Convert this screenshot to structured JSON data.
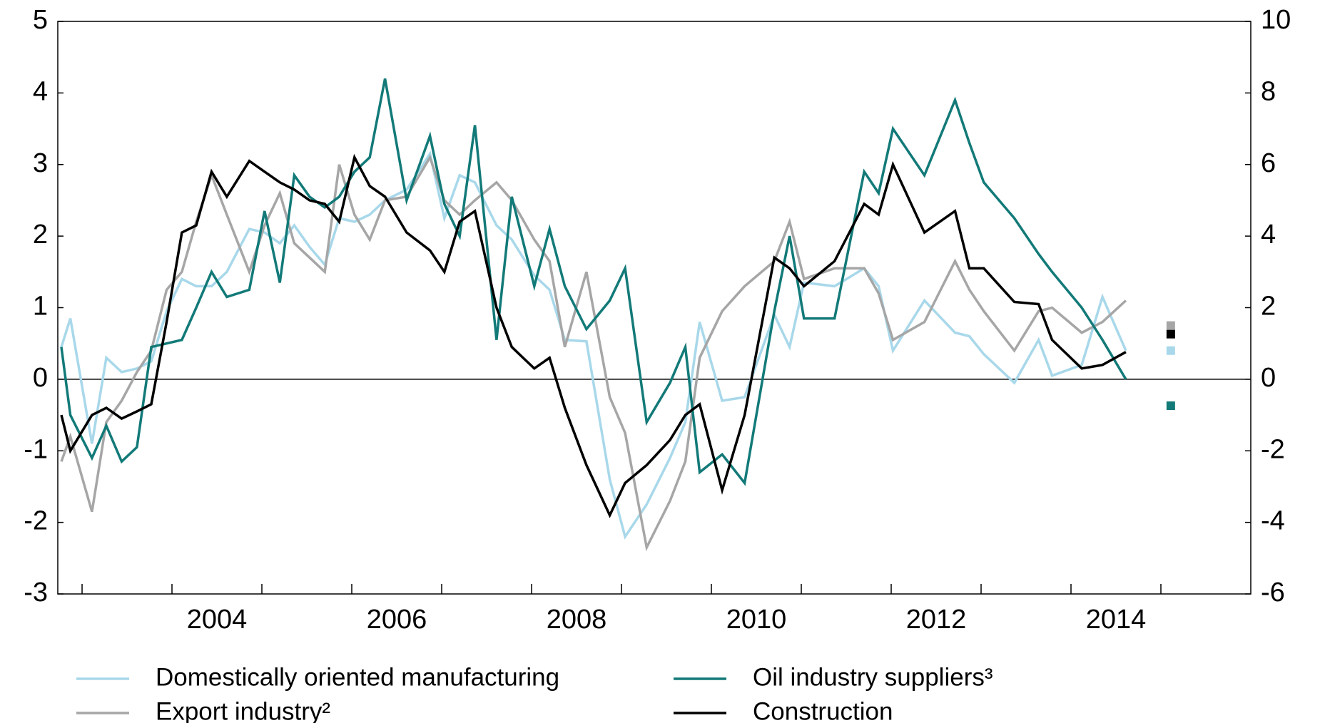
{
  "chart_data": {
    "type": "line",
    "x": [
      2002.77,
      2002.87,
      2003.11,
      2003.27,
      2003.44,
      2003.61,
      2003.77,
      2003.94,
      2004.11,
      2004.27,
      2004.44,
      2004.61,
      2004.86,
      2005.03,
      2005.2,
      2005.36,
      2005.53,
      2005.7,
      2005.86,
      2006.03,
      2006.2,
      2006.37,
      2006.61,
      2006.87,
      2007.03,
      2007.2,
      2007.37,
      2007.61,
      2007.78,
      2008.03,
      2008.2,
      2008.37,
      2008.61,
      2008.87,
      2009.04,
      2009.28,
      2009.54,
      2009.71,
      2009.87,
      2010.12,
      2010.37,
      2010.7,
      2010.87,
      2011.03,
      2011.37,
      2011.7,
      2011.86,
      2012.02,
      2012.37,
      2012.71,
      2012.87,
      2013.03,
      2013.37,
      2013.64,
      2013.79,
      2014.12,
      2014.35,
      2014.61
    ],
    "xlim": [
      2002.73,
      2016.0
    ],
    "xminorticks": [
      2003,
      2004,
      2005,
      2006,
      2007,
      2008,
      2009,
      2010,
      2011,
      2012,
      2013,
      2014,
      2015
    ],
    "xticks": [
      {
        "value": 2004.5,
        "label": "2004"
      },
      {
        "value": 2006.5,
        "label": "2006"
      },
      {
        "value": 2008.5,
        "label": "2008"
      },
      {
        "value": 2010.5,
        "label": "2010"
      },
      {
        "value": 2012.5,
        "label": "2012"
      },
      {
        "value": 2014.5,
        "label": "2014"
      }
    ],
    "ylim": [
      -3,
      5
    ],
    "yticks": [
      -3,
      -2,
      -1,
      0,
      1,
      2,
      3,
      4,
      5
    ],
    "y2lim": [
      -6,
      10
    ],
    "y2ticks": [
      -6,
      -4,
      -2,
      0,
      2,
      4,
      6,
      8,
      10
    ],
    "markers_x": 2015.11,
    "series": [
      {
        "name": "Domestically oriented manufacturing",
        "color": "#a8d8ea",
        "marker": 0.4,
        "values": [
          0.45,
          0.85,
          -0.9,
          0.3,
          0.1,
          0.15,
          0.25,
          0.95,
          1.4,
          1.3,
          1.3,
          1.5,
          2.1,
          2.05,
          1.9,
          2.15,
          1.85,
          1.6,
          2.25,
          2.2,
          2.3,
          2.5,
          2.65,
          3.15,
          2.25,
          2.85,
          2.75,
          2.15,
          1.95,
          1.45,
          1.25,
          0.55,
          0.53,
          -1.4,
          -2.2,
          -1.75,
          -1.1,
          -0.6,
          0.8,
          -0.3,
          -0.25,
          0.9,
          0.45,
          1.35,
          1.3,
          1.55,
          1.3,
          0.4,
          1.1,
          0.65,
          0.6,
          0.35,
          -0.05,
          0.55,
          0.05,
          0.2,
          1.15,
          0.4
        ]
      },
      {
        "name": "Export industry²",
        "color": "#a6a6a6",
        "marker": 0.75,
        "values": [
          -1.15,
          -0.8,
          -1.85,
          -0.6,
          -0.3,
          0.1,
          0.4,
          1.25,
          1.5,
          2.2,
          2.85,
          2.3,
          1.5,
          2.15,
          2.6,
          1.9,
          1.7,
          1.5,
          3.0,
          2.3,
          1.95,
          2.5,
          2.55,
          3.1,
          2.5,
          2.3,
          2.5,
          2.75,
          2.5,
          1.95,
          1.65,
          0.45,
          1.5,
          -0.25,
          -0.75,
          -2.35,
          -1.7,
          -1.15,
          0.3,
          0.95,
          1.3,
          1.65,
          2.2,
          1.4,
          1.55,
          1.55,
          1.2,
          0.55,
          0.8,
          1.65,
          1.25,
          0.95,
          0.4,
          0.95,
          1.0,
          0.65,
          0.8,
          1.1
        ]
      },
      {
        "name": "Oil industry suppliers³",
        "color": "#127a78",
        "axis": "y2",
        "marker": -0.74,
        "values": [
          0.9,
          -1,
          -2.2,
          -1.3,
          -2.3,
          -1.9,
          0.9,
          1,
          1.1,
          2,
          3,
          2.3,
          2.5,
          4.7,
          2.7,
          5.7,
          5.1,
          4.8,
          5.1,
          5.8,
          6.2,
          8.4,
          5,
          6.8,
          4.9,
          4,
          7.1,
          1.1,
          5.1,
          2.6,
          4.2,
          2.6,
          1.4,
          2.2,
          3.1,
          -1.2,
          -0.1,
          0.9,
          -2.6,
          -2.1,
          -2.9,
          1.9,
          4,
          1.7,
          1.7,
          5.8,
          5.2,
          7,
          5.7,
          7.8,
          6.6,
          5.5,
          4.5,
          3.5,
          3,
          2,
          1.1,
          0
        ]
      },
      {
        "name": "Construction",
        "color": "#000000",
        "marker": 0.63,
        "values": [
          -0.5,
          -1.0,
          -0.5,
          -0.4,
          -0.55,
          -0.45,
          -0.35,
          0.8,
          2.05,
          2.15,
          2.9,
          2.55,
          3.05,
          2.9,
          2.75,
          2.65,
          2.5,
          2.45,
          2.2,
          3.1,
          2.7,
          2.55,
          2.05,
          1.8,
          1.5,
          2.2,
          2.35,
          1.0,
          0.45,
          0.15,
          0.3,
          -0.4,
          -1.2,
          -1.9,
          -1.45,
          -1.2,
          -0.85,
          -0.5,
          -0.35,
          -1.55,
          -0.5,
          1.7,
          1.55,
          1.3,
          1.65,
          2.45,
          2.3,
          3.0,
          2.05,
          2.35,
          1.55,
          1.55,
          1.08,
          1.05,
          0.55,
          0.15,
          0.2,
          0.38
        ]
      }
    ]
  }
}
